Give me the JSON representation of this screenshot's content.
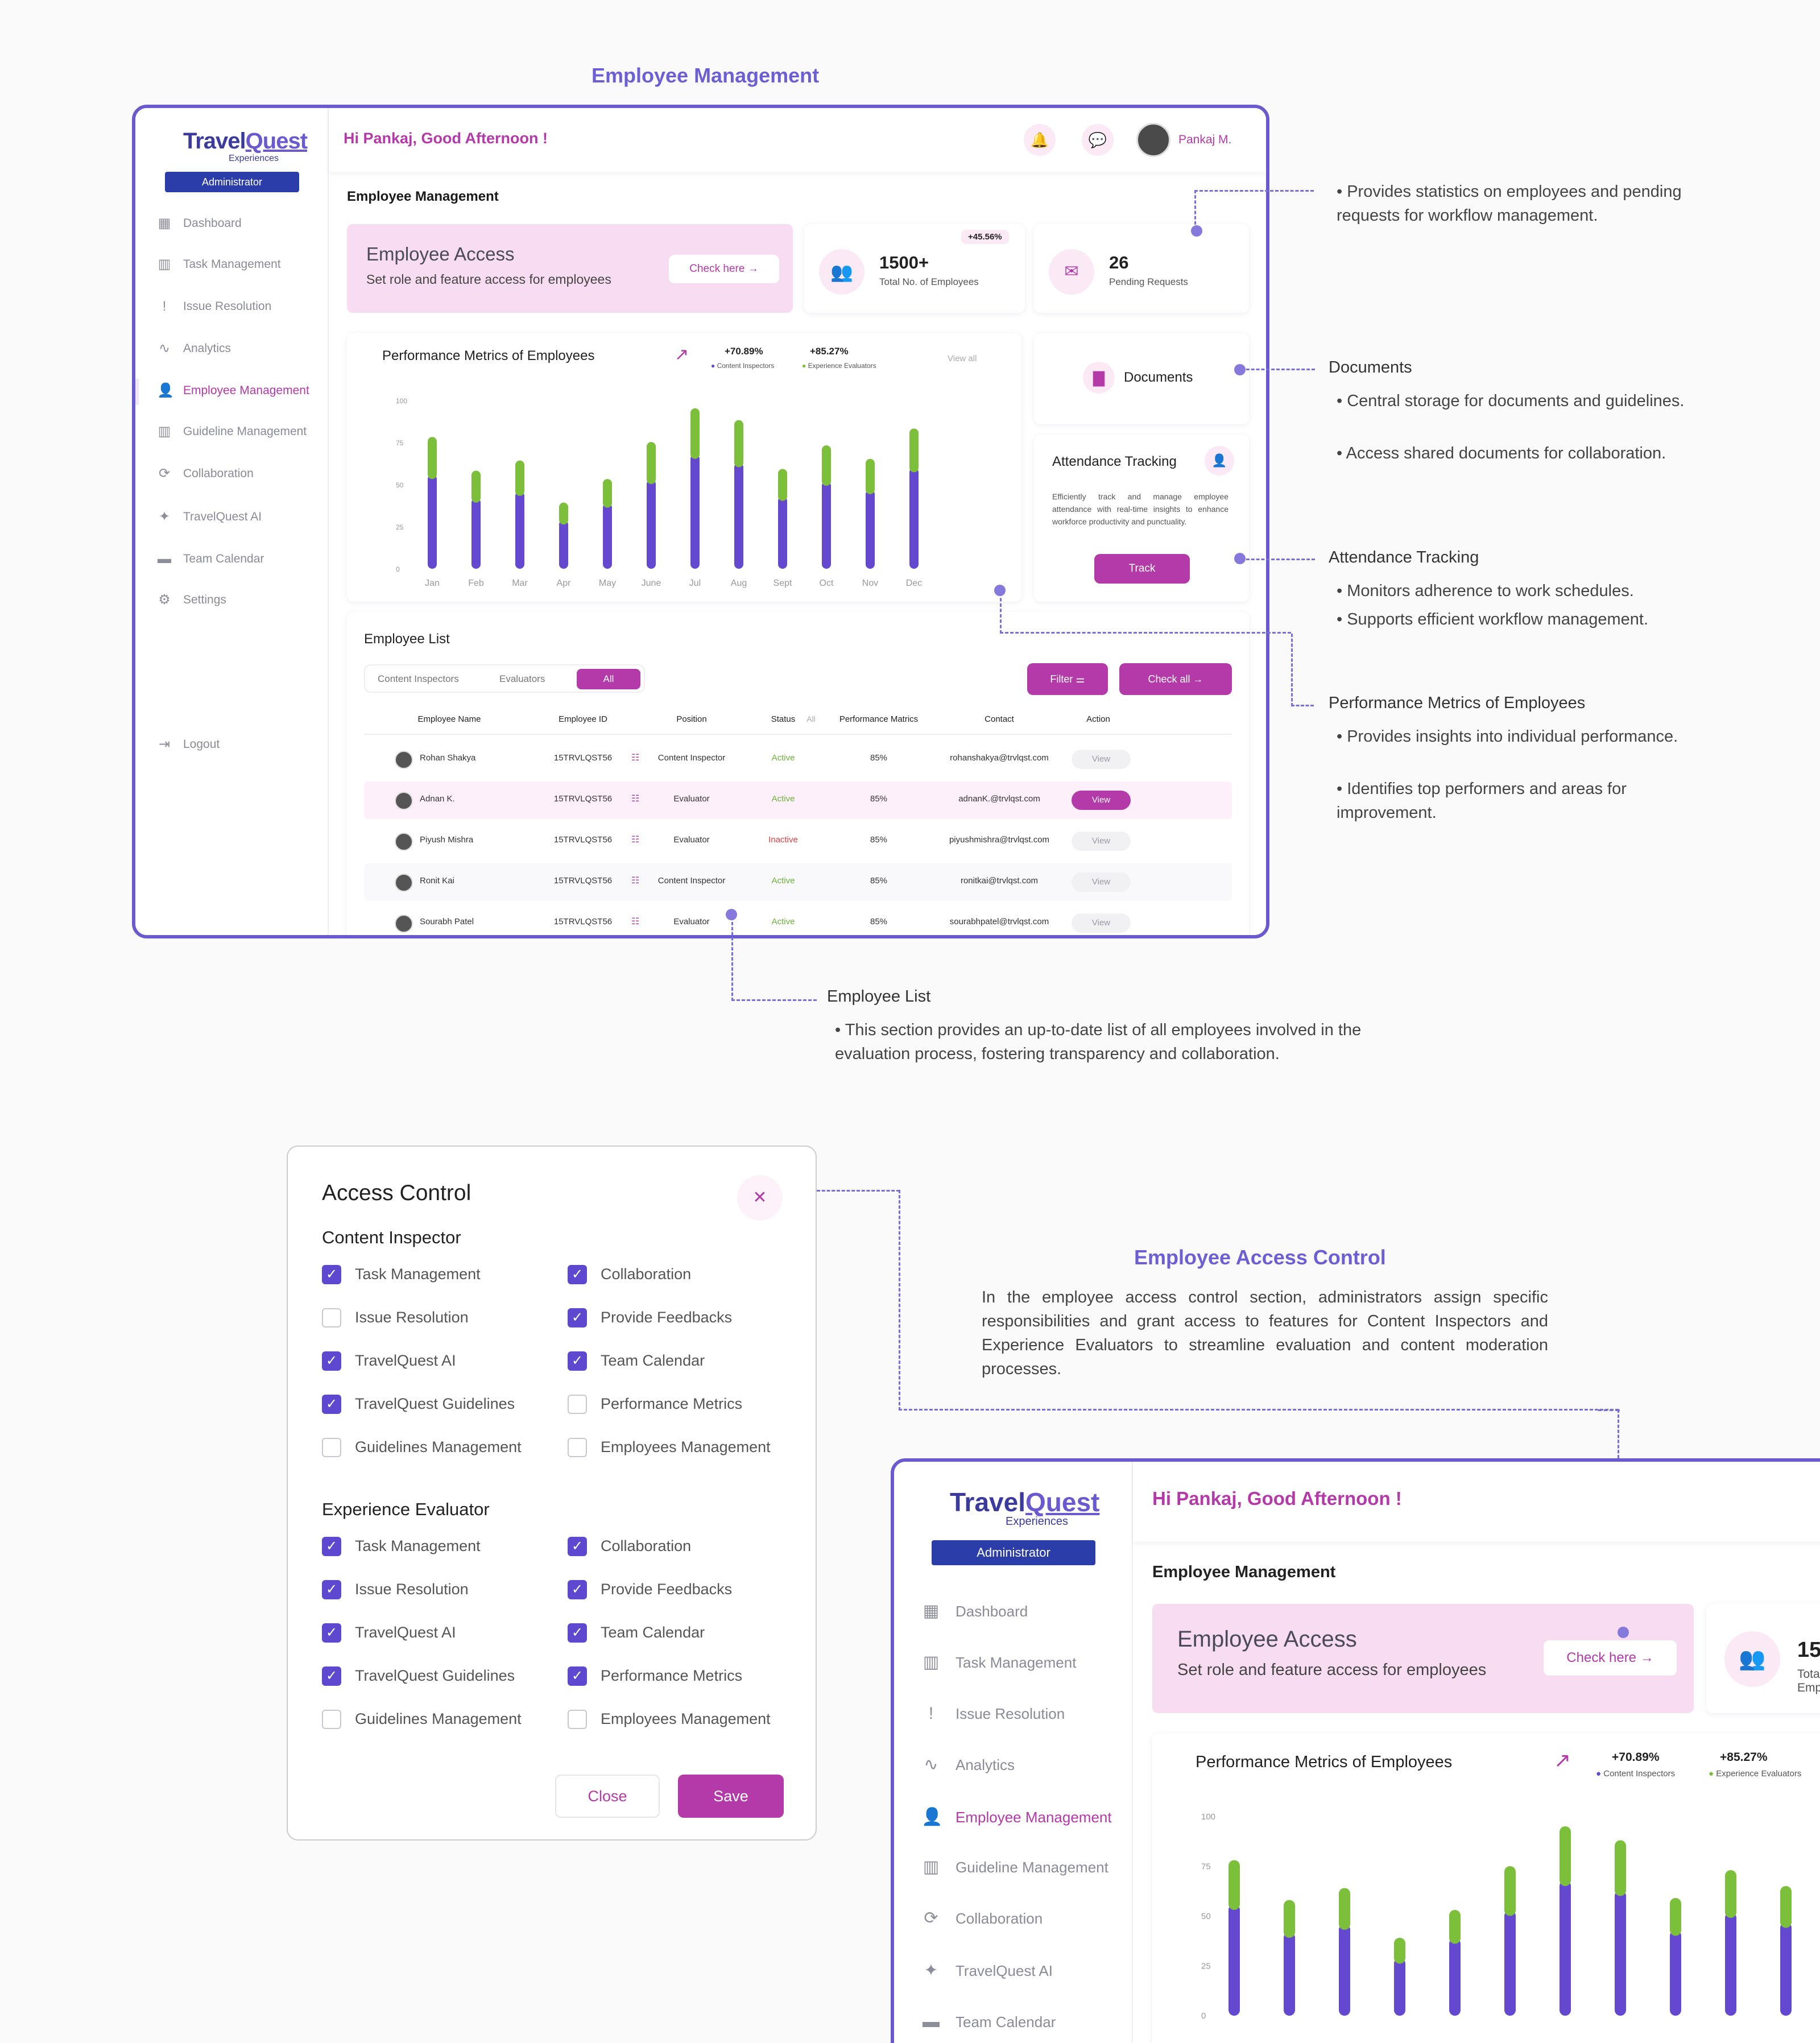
{
  "sections": {
    "employee_management": "Employee Management",
    "access_control_title": "Employee Access Control",
    "access_control_desc": "In the employee access control section, administrators assign specific responsibilities and grant access to features for Content Inspectors and Experience Evaluators to streamline evaluation and content moderation processes."
  },
  "app": {
    "logo_main": "TravelQuest",
    "logo_part1": "Travel",
    "logo_part2": "Quest",
    "logo_sub": "Experiences",
    "role_badge": "Administrator",
    "greeting": "Hi Pankaj, Good Afternoon !",
    "user_name": "Pankaj M.",
    "page_title": "Employee Management",
    "logout": "Logout"
  },
  "sidebar": {
    "items": [
      {
        "label": "Dashboard",
        "icon": "grid-icon"
      },
      {
        "label": "Task Management",
        "icon": "bar-chart-icon"
      },
      {
        "label": "Issue Resolution",
        "icon": "alert-icon"
      },
      {
        "label": "Analytics",
        "icon": "analytics-icon"
      },
      {
        "label": "Employee Management",
        "icon": "user-gear-icon",
        "active": true
      },
      {
        "label": "Guideline Management",
        "icon": "bar-chart-icon"
      },
      {
        "label": "Collaboration",
        "icon": "collab-icon"
      },
      {
        "label": "TravelQuest AI",
        "icon": "sparkle-icon"
      },
      {
        "label": "Team Calendar",
        "icon": "calendar-icon"
      },
      {
        "label": "Settings",
        "icon": "gear-icon"
      }
    ]
  },
  "access_card": {
    "title": "Employee Access",
    "subtitle": "Set role and feature access for employees",
    "button": "Check here"
  },
  "stats": {
    "employees_value": "1500+",
    "employees_label": "Total No. of Employees",
    "employees_change": "+45.56%",
    "pending_value": "26",
    "pending_label": "Pending Requests"
  },
  "documents": {
    "label": "Documents"
  },
  "attendance": {
    "title": "Attendance Tracking",
    "desc": "Efficiently track and manage employee attendance with real-time insights to enhance workforce productivity and punctuality.",
    "button": "Track"
  },
  "chart_data": {
    "type": "bar",
    "title": "Performance Metrics of Employees",
    "view_all": "View all",
    "categories": [
      "Jan",
      "Feb",
      "Mar",
      "Apr",
      "May",
      "June",
      "Jul",
      "Aug",
      "Sept",
      "Oct",
      "Nov",
      "Dec"
    ],
    "yticks": [
      "100",
      "75",
      "50",
      "25",
      "0"
    ],
    "ylim": [
      0,
      100
    ],
    "stacked": true,
    "series": [
      {
        "name": "Content Inspectors",
        "change": "+70.89%",
        "color": "#6448d0",
        "values": [
          56,
          42,
          46,
          29,
          39,
          53,
          68,
          63,
          43,
          52,
          47,
          60
        ]
      },
      {
        "name": "Experience Evaluators",
        "change": "+85.27%",
        "color": "#7bbf3a",
        "values": [
          25,
          19,
          21,
          13,
          17,
          25,
          30,
          28,
          19,
          24,
          21,
          26
        ]
      }
    ]
  },
  "employee_list": {
    "title": "Employee List",
    "tabs": [
      "Content Inspectors",
      "Evaluators",
      "All"
    ],
    "filter": "Filter",
    "check_all": "Check all",
    "columns": [
      "Employee Name",
      "Employee ID",
      "Position",
      "Status",
      "Performance Matrics",
      "Contact",
      "Action"
    ],
    "status_filter": "All",
    "rows": [
      {
        "name": "Rohan Shakya",
        "id": "15TRVLQST56",
        "position": "Content Inspector",
        "status": "Active",
        "perf": "85%",
        "contact": "rohanshakya@trvlqst.com",
        "action": "View"
      },
      {
        "name": "Adnan K.",
        "id": "15TRVLQST56",
        "position": "Evaluator",
        "status": "Active",
        "perf": "85%",
        "contact": "adnanK.@trvlqst.com",
        "action": "View"
      },
      {
        "name": "Piyush Mishra",
        "id": "15TRVLQST56",
        "position": "Evaluator",
        "status": "Inactive",
        "perf": "85%",
        "contact": "piyushmishra@trvlqst.com",
        "action": "View"
      },
      {
        "name": "Ronit Kai",
        "id": "15TRVLQST56",
        "position": "Content Inspector",
        "status": "Active",
        "perf": "85%",
        "contact": "ronitkai@trvlqst.com",
        "action": "View"
      },
      {
        "name": "Sourabh Patel",
        "id": "15TRVLQST56",
        "position": "Evaluator",
        "status": "Active",
        "perf": "85%",
        "contact": "sourabhpatel@trvlqst.com",
        "action": "View"
      }
    ]
  },
  "annotations": {
    "stats_note": "Provides statistics on employees and pending requests for workflow management.",
    "documents_title": "Documents",
    "documents_notes": [
      "Central storage for documents and guidelines.",
      "Access shared documents for collaboration."
    ],
    "attendance_title": "Attendance Tracking",
    "attendance_notes": [
      "Monitors adherence to work schedules.",
      "Supports efficient workflow management."
    ],
    "performance_title": "Performance Metrics of Employees",
    "performance_notes": [
      "Provides insights into individual performance.",
      "Identifies top performers and areas for improvement."
    ],
    "list_title": "Employee List",
    "list_note": "This section provides an up-to-date list of all employees involved in the evaluation process, fostering transparency and collaboration."
  },
  "access_modal": {
    "title": "Access Control",
    "groups": [
      {
        "name": "Content Inspector",
        "items": [
          {
            "label": "Task Management",
            "checked": true
          },
          {
            "label": "Collaboration",
            "checked": true
          },
          {
            "label": "Issue Resolution",
            "checked": false
          },
          {
            "label": "Provide Feedbacks",
            "checked": true
          },
          {
            "label": "TravelQuest AI",
            "checked": true
          },
          {
            "label": "Team Calendar",
            "checked": true
          },
          {
            "label": "TravelQuest Guidelines",
            "checked": true
          },
          {
            "label": "Performance Metrics",
            "checked": false
          },
          {
            "label": "Guidelines Management",
            "checked": false
          },
          {
            "label": "Employees Management",
            "checked": false
          }
        ]
      },
      {
        "name": "Experience Evaluator",
        "items": [
          {
            "label": "Task Management",
            "checked": true
          },
          {
            "label": "Collaboration",
            "checked": true
          },
          {
            "label": "Issue Resolution",
            "checked": true
          },
          {
            "label": "Provide Feedbacks",
            "checked": true
          },
          {
            "label": "TravelQuest AI",
            "checked": true
          },
          {
            "label": "Team Calendar",
            "checked": true
          },
          {
            "label": "TravelQuest Guidelines",
            "checked": true
          },
          {
            "label": "Performance Metrics",
            "checked": true
          },
          {
            "label": "Guidelines Management",
            "checked": false
          },
          {
            "label": "Employees Management",
            "checked": false
          }
        ]
      }
    ],
    "close": "Close",
    "save": "Save"
  }
}
